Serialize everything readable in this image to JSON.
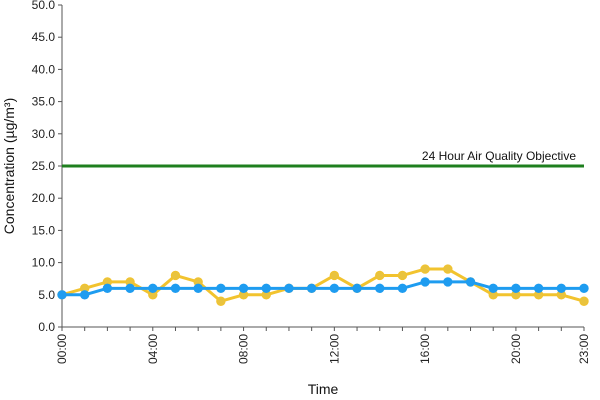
{
  "chart_data": {
    "type": "line",
    "xlabel": "Time",
    "ylabel": "Concentration (µg/m³)",
    "ylim": [
      0,
      50
    ],
    "y_ticks": [
      0,
      5,
      10,
      15,
      20,
      25,
      30,
      35,
      40,
      45,
      50
    ],
    "y_tick_labels": [
      "0.0",
      "5.0",
      "10.0",
      "15.0",
      "20.0",
      "25.0",
      "30.0",
      "35.0",
      "40.0",
      "45.0",
      "50.0"
    ],
    "x_hours": [
      0,
      1,
      2,
      3,
      4,
      5,
      6,
      7,
      8,
      9,
      10,
      11,
      12,
      13,
      14,
      15,
      16,
      17,
      18,
      19,
      20,
      21,
      22,
      23
    ],
    "x_tick_labels": [
      {
        "hour": 0,
        "label": "00:00"
      },
      {
        "hour": 4,
        "label": "04:00"
      },
      {
        "hour": 8,
        "label": "08:00"
      },
      {
        "hour": 12,
        "label": "12:00"
      },
      {
        "hour": 16,
        "label": "16:00"
      },
      {
        "hour": 20,
        "label": "20:00"
      },
      {
        "hour": 23,
        "label": "23:00"
      }
    ],
    "grid": false,
    "series": [
      {
        "color": "#F2C32E",
        "marker_fill": "#E9C33E",
        "values": [
          5,
          6,
          7,
          7,
          5,
          8,
          7,
          4,
          5,
          5,
          6,
          6,
          8,
          6,
          8,
          8,
          9,
          9,
          7,
          5,
          5,
          5,
          5,
          4
        ]
      },
      {
        "color": "#1E9CF0",
        "marker_fill": "#1E9CF0",
        "values": [
          5,
          5,
          6,
          6,
          6,
          6,
          6,
          6,
          6,
          6,
          6,
          6,
          6,
          6,
          6,
          6,
          7,
          7,
          7,
          6,
          6,
          6,
          6,
          6
        ]
      }
    ],
    "reference_line": {
      "value": 25,
      "label": "24 Hour Air Quality Objective",
      "color": "#1E7F1E"
    }
  }
}
